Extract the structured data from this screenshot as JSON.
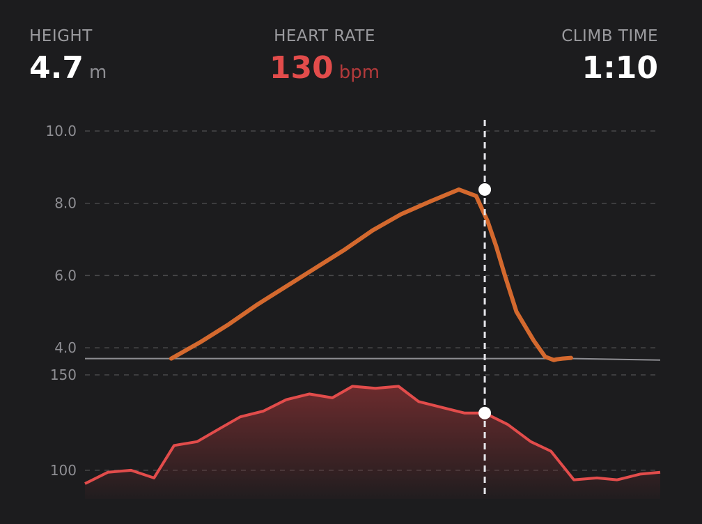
{
  "stats": {
    "height": {
      "label": "HEIGHT",
      "value": "4.7",
      "unit": "m"
    },
    "heart_rate": {
      "label": "HEART RATE",
      "value": "130",
      "unit": "bpm"
    },
    "climb_time": {
      "label": "CLIMB TIME",
      "value": "1:10"
    }
  },
  "colors": {
    "background": "#1c1c1e",
    "height_line": "#d4692e",
    "height_baseline": "#8e8e93",
    "heart_rate_line": "#e24c4b",
    "heart_rate_fill": "#7a2e30",
    "gridline": "#48484a",
    "cursor": "#e5e5ea",
    "marker": "#ffffff"
  },
  "chart_data": [
    {
      "type": "line",
      "title": "",
      "xlabel": "",
      "ylabel": "",
      "ylim": [
        3.5,
        10.0
      ],
      "yticks": [
        "10.0",
        "8.0",
        "6.0",
        "4.0"
      ],
      "ytick_values": [
        10.0,
        8.0,
        6.0,
        4.0
      ],
      "grid": true,
      "x_range": [
        0,
        100
      ],
      "series": [
        {
          "role": "baseline",
          "x": [
            0,
            15,
            85,
            100
          ],
          "y": [
            3.7,
            3.7,
            3.7,
            3.66
          ]
        },
        {
          "role": "height",
          "x": [
            15,
            20,
            25,
            30,
            35,
            40,
            45,
            50,
            55,
            60,
            65,
            68,
            70,
            71.5,
            73,
            75,
            78,
            80,
            81.5,
            82,
            83,
            84.5
          ],
          "y": [
            3.7,
            4.15,
            4.65,
            5.2,
            5.7,
            6.2,
            6.7,
            7.25,
            7.7,
            8.05,
            8.38,
            8.2,
            7.5,
            6.8,
            6.0,
            5.0,
            4.2,
            3.75,
            3.66,
            3.68,
            3.7,
            3.72
          ]
        }
      ],
      "cursor": {
        "x": 69.5,
        "y": 8.38
      }
    },
    {
      "type": "area",
      "title": "",
      "xlabel": "",
      "ylabel": "",
      "ylim": [
        85,
        150
      ],
      "yticks": [
        "150",
        "100"
      ],
      "ytick_values": [
        150,
        100
      ],
      "grid": true,
      "x_range": [
        0,
        100
      ],
      "series": [
        {
          "role": "heart_rate",
          "x": [
            0,
            4,
            8,
            12,
            15.5,
            19.5,
            23.5,
            27,
            31,
            35,
            39,
            43,
            46.5,
            50.5,
            54.5,
            58,
            62,
            66,
            69.5,
            73.5,
            77.5,
            81,
            85,
            89,
            92.5,
            96.5,
            100
          ],
          "y": [
            93,
            99,
            100,
            96,
            113,
            115,
            122,
            128,
            131,
            137,
            140,
            138,
            144,
            143,
            144,
            136,
            133,
            130,
            130,
            124,
            115,
            110,
            95,
            96,
            95,
            98,
            99
          ]
        }
      ],
      "cursor": {
        "x": 69.5,
        "y": 130
      }
    }
  ]
}
